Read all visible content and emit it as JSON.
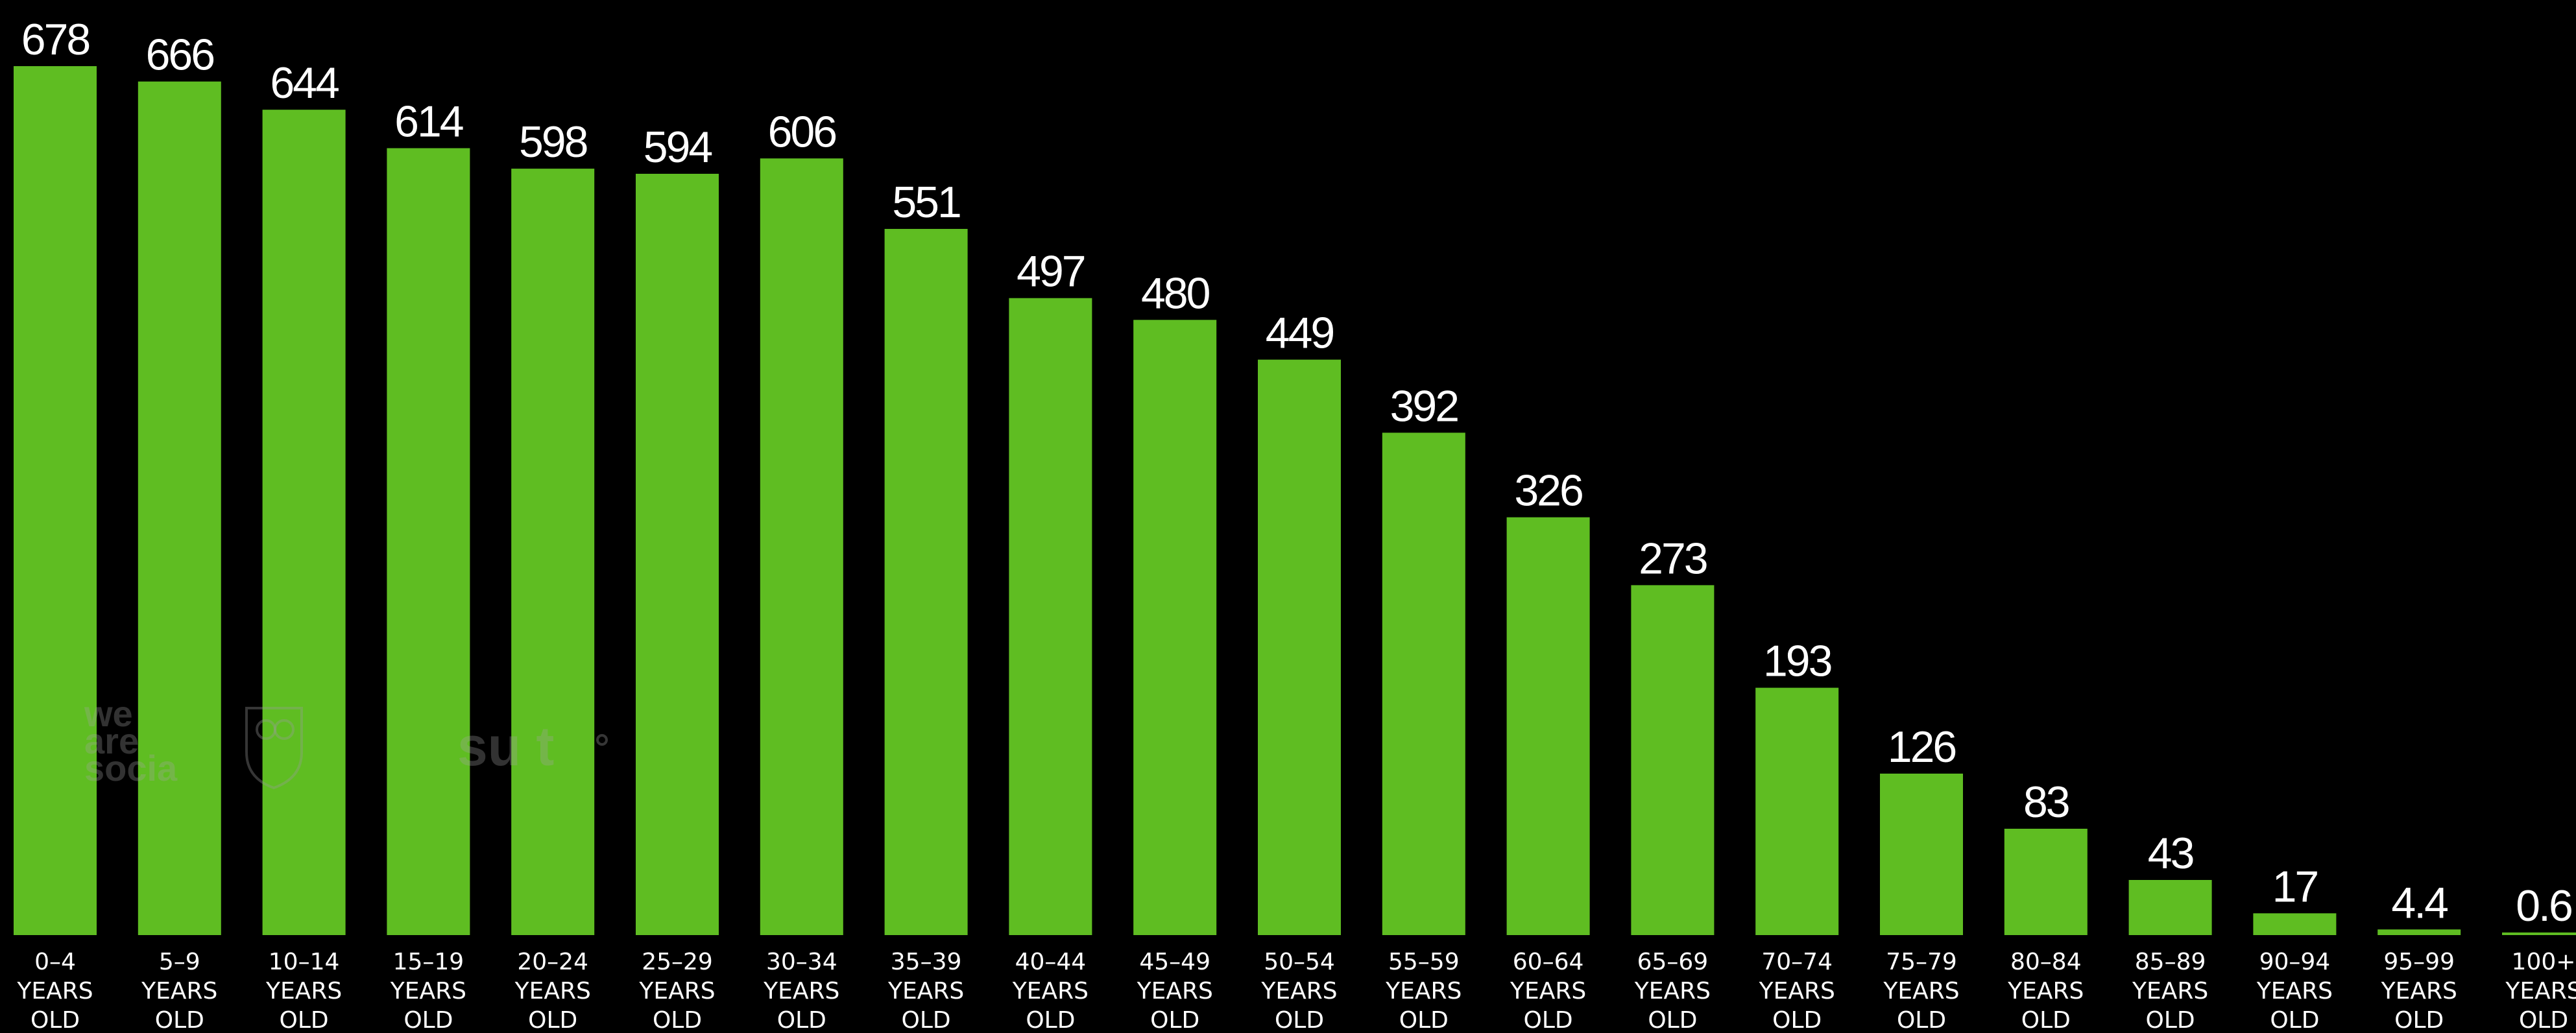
{
  "chart_data": {
    "type": "bar",
    "categories": [
      [
        "0–4",
        "YEARS",
        "OLD"
      ],
      [
        "5–9",
        "YEARS",
        "OLD"
      ],
      [
        "10–14",
        "YEARS",
        "OLD"
      ],
      [
        "15–19",
        "YEARS",
        "OLD"
      ],
      [
        "20–24",
        "YEARS",
        "OLD"
      ],
      [
        "25–29",
        "YEARS",
        "OLD"
      ],
      [
        "30–34",
        "YEARS",
        "OLD"
      ],
      [
        "35–39",
        "YEARS",
        "OLD"
      ],
      [
        "40–44",
        "YEARS",
        "OLD"
      ],
      [
        "45–49",
        "YEARS",
        "OLD"
      ],
      [
        "50–54",
        "YEARS",
        "OLD"
      ],
      [
        "55–59",
        "YEARS",
        "OLD"
      ],
      [
        "60–64",
        "YEARS",
        "OLD"
      ],
      [
        "65–69",
        "YEARS",
        "OLD"
      ],
      [
        "70–74",
        "YEARS",
        "OLD"
      ],
      [
        "75–79",
        "YEARS",
        "OLD"
      ],
      [
        "80–84",
        "YEARS",
        "OLD"
      ],
      [
        "85–89",
        "YEARS",
        "OLD"
      ],
      [
        "90–94",
        "YEARS",
        "OLD"
      ],
      [
        "95–99",
        "YEARS",
        "OLD"
      ],
      [
        "100+",
        "YEARS",
        "OLD"
      ]
    ],
    "values": [
      678,
      666,
      644,
      614,
      598,
      594,
      606,
      551,
      497,
      480,
      449,
      392,
      326,
      273,
      193,
      126,
      83,
      43,
      17,
      4.4,
      0.6
    ],
    "value_labels": [
      "678",
      "666",
      "644",
      "614",
      "598",
      "594",
      "606",
      "551",
      "497",
      "480",
      "449",
      "392",
      "326",
      "273",
      "193",
      "126",
      "83",
      "43",
      "17",
      "4.4",
      "0.6"
    ],
    "ylim": [
      0,
      678
    ],
    "grid": false,
    "colors": {
      "bar": "#5fbd22",
      "background": "#000000",
      "text": "#ffffff"
    }
  },
  "watermarks": {
    "left": [
      "we",
      "are",
      "socia"
    ],
    "right": "su t"
  }
}
